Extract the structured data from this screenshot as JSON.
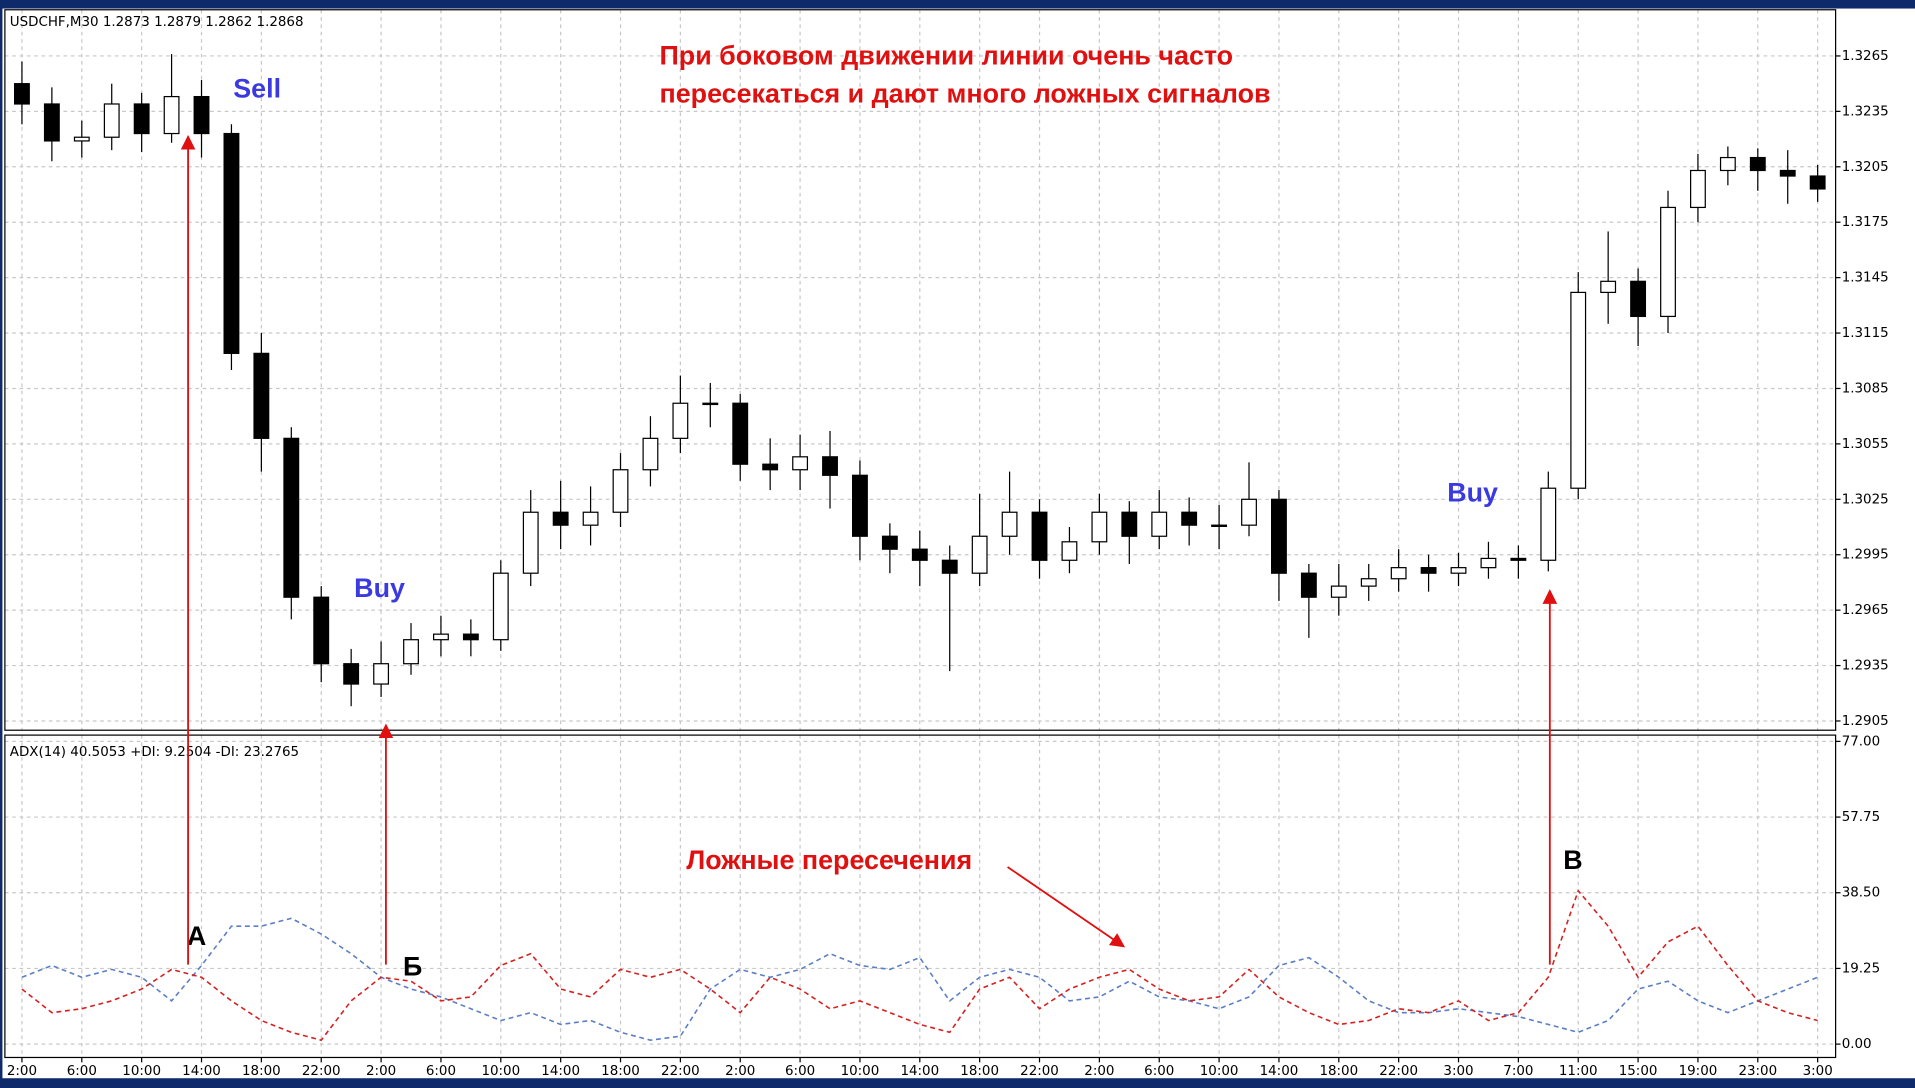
{
  "chart_data": [
    {
      "type": "candlestick",
      "header": "USDCHF,M30  1.2873 1.2879 1.2862 1.2868",
      "title": [
        "При боковом движении линии очень часто",
        "пересекаться и дают много ложных сигналов"
      ],
      "annotations": [
        "Sell",
        "Buy",
        "Buy"
      ],
      "up_color": "#ffffff",
      "down_color": "#000000",
      "open": [
        1.325,
        1.3239,
        1.3219,
        1.3221,
        1.3239,
        1.3223,
        1.3243,
        1.3223,
        1.3104,
        1.3058,
        1.2972,
        1.2936,
        1.2925,
        1.2936,
        1.2949,
        1.2952,
        1.2949,
        1.2985,
        1.3018,
        1.3011,
        1.3018,
        1.3041,
        1.3058,
        1.3077,
        1.3077,
        1.3044,
        1.3041,
        1.3048,
        1.3038,
        1.3005,
        1.2998,
        1.2992,
        1.2985,
        1.3005,
        1.3018,
        1.2992,
        1.3002,
        1.3018,
        1.3005,
        1.3018,
        1.3011,
        1.3011,
        1.3025,
        1.2985,
        1.2972,
        1.2978,
        1.2982,
        1.2988,
        1.2985,
        1.2988,
        1.2993,
        1.2992,
        1.3031,
        1.3137,
        1.3143,
        1.3124,
        1.3183,
        1.3203,
        1.321,
        1.3203,
        1.32
      ],
      "high": [
        1.3262,
        1.3248,
        1.323,
        1.325,
        1.3245,
        1.3266,
        1.3252,
        1.3228,
        1.3115,
        1.3064,
        1.2978,
        1.2944,
        1.2948,
        1.2958,
        1.2962,
        1.296,
        1.2992,
        1.303,
        1.3035,
        1.3032,
        1.305,
        1.307,
        1.3092,
        1.3088,
        1.3082,
        1.3058,
        1.306,
        1.3062,
        1.3046,
        1.3012,
        1.3008,
        1.3,
        1.3028,
        1.304,
        1.3025,
        1.301,
        1.3028,
        1.3024,
        1.303,
        1.3026,
        1.3022,
        1.3045,
        1.303,
        1.299,
        1.299,
        1.299,
        1.2998,
        1.2995,
        1.2996,
        1.3002,
        1.3,
        1.304,
        1.3148,
        1.317,
        1.315,
        1.3192,
        1.3212,
        1.3216,
        1.3215,
        1.3214,
        1.3206
      ],
      "low": [
        1.3228,
        1.3208,
        1.321,
        1.3214,
        1.3213,
        1.3218,
        1.321,
        1.3095,
        1.304,
        1.296,
        1.2926,
        1.2913,
        1.2918,
        1.293,
        1.294,
        1.294,
        1.2943,
        1.2978,
        1.2998,
        1.3,
        1.301,
        1.3032,
        1.305,
        1.3064,
        1.3035,
        1.303,
        1.303,
        1.302,
        1.2992,
        1.2985,
        1.2978,
        1.2932,
        1.2978,
        1.2995,
        1.2982,
        1.2985,
        1.2995,
        1.299,
        1.2998,
        1.3,
        1.2998,
        1.3005,
        1.297,
        1.295,
        1.2962,
        1.297,
        1.2975,
        1.2975,
        1.2978,
        1.2982,
        1.2982,
        1.2986,
        1.3025,
        1.312,
        1.3108,
        1.3115,
        1.3175,
        1.3195,
        1.3192,
        1.3185,
        1.3186
      ],
      "close": [
        1.3239,
        1.3219,
        1.3221,
        1.3239,
        1.3223,
        1.3243,
        1.3223,
        1.3104,
        1.3058,
        1.2972,
        1.2936,
        1.2925,
        1.2936,
        1.2949,
        1.2952,
        1.2949,
        1.2985,
        1.3018,
        1.3011,
        1.3018,
        1.3041,
        1.3058,
        1.3077,
        1.3077,
        1.3044,
        1.3041,
        1.3048,
        1.3038,
        1.3005,
        1.2998,
        1.2992,
        1.2985,
        1.3005,
        1.3018,
        1.2992,
        1.3002,
        1.3018,
        1.3005,
        1.3018,
        1.3011,
        1.3011,
        1.3025,
        1.2985,
        1.2972,
        1.2978,
        1.2982,
        1.2988,
        1.2985,
        1.2988,
        1.2993,
        1.2992,
        1.3031,
        1.3137,
        1.3143,
        1.3124,
        1.3183,
        1.3203,
        1.321,
        1.3203,
        1.32,
        1.3193
      ],
      "xlim": [
        -0.57,
        60.6
      ],
      "ylim": [
        1.29,
        1.329
      ],
      "yticks": [
        1.3265,
        1.3235,
        1.3205,
        1.3175,
        1.3145,
        1.3115,
        1.3085,
        1.3055,
        1.3025,
        1.2995,
        1.2965,
        1.2935,
        1.2905
      ],
      "grid": true
    },
    {
      "type": "line",
      "header": "ADX(14) 40.5053 +DI: 9.2504  -DI: 23.2765",
      "annotations": [
        "Ложные пересечения",
        "А",
        "Б",
        "В"
      ],
      "series": [
        {
          "color": "#5b7fc4",
          "values": [
            17,
            20,
            17,
            19,
            17,
            11,
            20,
            30,
            30,
            32,
            28,
            23,
            17,
            14,
            12,
            9,
            6,
            8,
            5,
            6,
            3,
            1,
            2,
            14,
            19,
            17,
            19,
            23,
            20,
            19,
            22,
            11,
            17,
            19,
            17,
            11,
            12,
            16,
            12,
            11,
            9,
            12,
            20,
            22,
            17,
            11,
            8,
            8,
            9,
            8,
            7,
            5,
            3,
            6,
            14,
            16,
            11,
            8,
            11,
            14,
            17
          ]
        },
        {
          "color": "#d62020",
          "values": [
            14,
            8,
            9,
            11,
            14,
            19,
            17,
            11,
            6,
            3,
            1,
            11,
            17,
            16,
            11,
            12,
            20,
            23,
            14,
            12,
            19,
            17,
            19,
            14,
            8,
            17,
            14,
            9,
            11,
            8,
            5,
            3,
            14,
            17,
            9,
            14,
            17,
            19,
            14,
            11,
            12,
            19,
            12,
            8,
            5,
            6,
            9,
            8,
            11,
            6,
            8,
            17,
            39,
            30,
            17,
            26,
            30,
            20,
            11,
            8,
            6
          ]
        }
      ],
      "xlim": [
        -0.57,
        60.6
      ],
      "ylim": [
        -3.4,
        78.6
      ],
      "yticks": [
        {
          "value": 77,
          "label": "77.00"
        },
        57.75,
        {
          "value": 38.5,
          "label": "38.50"
        },
        19.25,
        {
          "value": 0,
          "label": "0.00"
        }
      ],
      "xticks": [
        {
          "value": 0,
          "label": "2:00"
        },
        {
          "value": 2,
          "label": "6:00"
        },
        {
          "value": 4,
          "label": "10:00"
        },
        {
          "value": 6,
          "label": "14:00"
        },
        {
          "value": 8,
          "label": "18:00"
        },
        {
          "value": 10,
          "label": "22:00"
        },
        {
          "value": 12,
          "label": "2:00"
        },
        {
          "value": 14,
          "label": "6:00"
        },
        {
          "value": 16,
          "label": "10:00"
        },
        {
          "value": 18,
          "label": "14:00"
        },
        {
          "value": 20,
          "label": "18:00"
        },
        {
          "value": 22,
          "label": "22:00"
        },
        {
          "value": 24,
          "label": "2:00"
        },
        {
          "value": 26,
          "label": "6:00"
        },
        {
          "value": 28,
          "label": "10:00"
        },
        {
          "value": 30,
          "label": "14:00"
        },
        {
          "value": 32,
          "label": "18:00"
        },
        {
          "value": 34,
          "label": "22:00"
        },
        {
          "value": 36,
          "label": "2:00"
        },
        {
          "value": 38,
          "label": "6:00"
        },
        {
          "value": 40,
          "label": "10:00"
        },
        {
          "value": 42,
          "label": "14:00"
        },
        {
          "value": 44,
          "label": "18:00"
        },
        {
          "value": 46,
          "label": "22:00"
        },
        {
          "value": 48,
          "label": "3:00"
        },
        {
          "value": 50,
          "label": "7:00"
        },
        {
          "value": 52,
          "label": "11:00"
        },
        {
          "value": 54,
          "label": "15:00"
        },
        {
          "value": 56,
          "label": "19:00"
        },
        {
          "value": 58,
          "label": "23:00"
        },
        {
          "value": 60,
          "label": "3:00"
        }
      ],
      "grid": true
    }
  ]
}
